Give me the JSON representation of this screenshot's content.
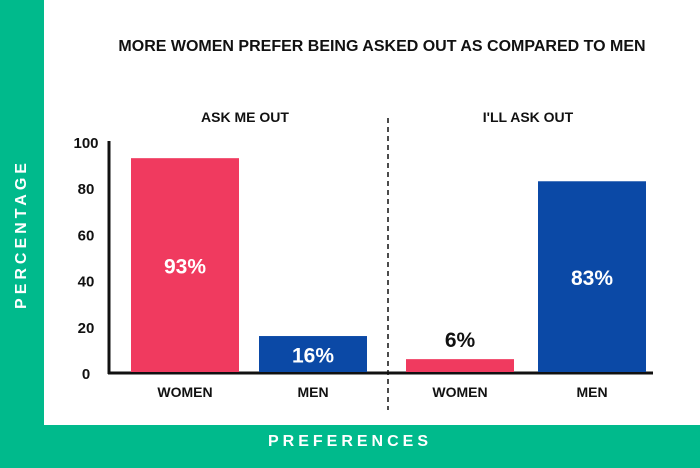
{
  "chart_data": {
    "type": "bar",
    "title": "MORE WOMEN  PREFER BEING ASKED OUT AS COMPARED TO MEN",
    "ylabel": "PERCENTAGE",
    "xlabel": "PREFERENCES",
    "ylim": [
      0,
      100
    ],
    "yticks": [
      "0",
      "20",
      "40",
      "60",
      "80",
      "100"
    ],
    "grid": false,
    "groups": [
      {
        "label": "ASK ME OUT",
        "categories": [
          "WOMEN",
          "MEN"
        ],
        "values": [
          93,
          16
        ],
        "data_labels": [
          "93%",
          "16%"
        ]
      },
      {
        "label": "I'LL ASK OUT",
        "categories": [
          "WOMEN",
          "MEN"
        ],
        "values": [
          6,
          83
        ],
        "data_labels": [
          "6%",
          "83%"
        ]
      }
    ],
    "colors": {
      "WOMEN": "#F03A5F",
      "MEN": "#0B49A6"
    }
  },
  "frame_color": "#00BA8C"
}
